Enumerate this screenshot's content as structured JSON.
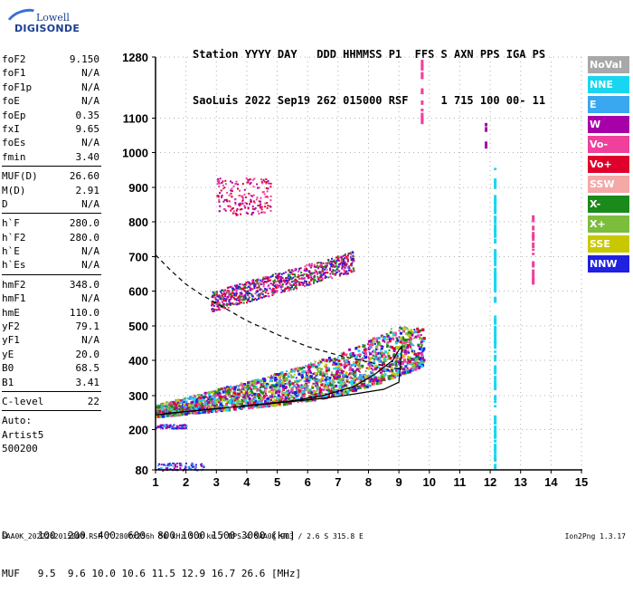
{
  "logo": {
    "line1": "Lowell",
    "line2": "DIGISONDE"
  },
  "header": {
    "line1": "Station YYYY DAY   DDD HHMMSS P1  FFS S AXN PPS IGA PS",
    "line2": "SaoLuis 2022 Sep19 262 015000 RSF     1 715 100 00- 11"
  },
  "params": {
    "group1": [
      {
        "label": "foF2",
        "value": "9.150"
      },
      {
        "label": "foF1",
        "value": "N/A"
      },
      {
        "label": "foF1p",
        "value": "N/A"
      },
      {
        "label": "foE",
        "value": "N/A"
      },
      {
        "label": "foEp",
        "value": "0.35"
      },
      {
        "label": "fxI",
        "value": "9.65"
      },
      {
        "label": "foEs",
        "value": "N/A"
      },
      {
        "label": "fmin",
        "value": "3.40"
      }
    ],
    "group2": [
      {
        "label": "MUF(D)",
        "value": "26.60"
      },
      {
        "label": "M(D)",
        "value": "2.91"
      },
      {
        "label": "D",
        "value": "N/A"
      }
    ],
    "group3": [
      {
        "label": "h`F",
        "value": "280.0"
      },
      {
        "label": "h`F2",
        "value": "280.0"
      },
      {
        "label": "h`E",
        "value": "N/A"
      },
      {
        "label": "h`Es",
        "value": "N/A"
      }
    ],
    "group4": [
      {
        "label": "hmF2",
        "value": "348.0"
      },
      {
        "label": "hmF1",
        "value": "N/A"
      },
      {
        "label": "hmE",
        "value": "110.0"
      },
      {
        "label": "yF2",
        "value": "79.1"
      },
      {
        "label": "yF1",
        "value": "N/A"
      },
      {
        "label": "yE",
        "value": "20.0"
      },
      {
        "label": "B0",
        "value": "68.5"
      },
      {
        "label": "B1",
        "value": "3.41"
      }
    ],
    "group5": [
      {
        "label": "C-level",
        "value": "22"
      }
    ],
    "auto": [
      "Auto:",
      "Artist5",
      "500200"
    ]
  },
  "legend": [
    {
      "label": "NoVal",
      "color": "#a8a8a8"
    },
    {
      "label": "NNE",
      "color": "#19d6f0"
    },
    {
      "label": "E",
      "color": "#3aa8f0"
    },
    {
      "label": "W",
      "color": "#a800a8"
    },
    {
      "label": "Vo-",
      "color": "#f0409c"
    },
    {
      "label": "Vo+",
      "color": "#e0002c"
    },
    {
      "label": "SSW",
      "color": "#f4a8a8"
    },
    {
      "label": "X-",
      "color": "#1a8a1a"
    },
    {
      "label": "X+",
      "color": "#7cbd3c"
    },
    {
      "label": "SSE",
      "color": "#c8c800"
    },
    {
      "label": "NNW",
      "color": "#2020e0"
    }
  ],
  "bottom": {
    "line1": "D     100  200  400  600  800 1000 1500 3000 [km]",
    "line2": "MUF   9.5  9.6 10.0 10.6 11.5 12.9 16.7 26.6 [MHz]"
  },
  "footer": "SAA0K_2022262015000.RSF / 280fx256h 50 kHz 5.0 km / DPS-4 SAA0K 903 / 2.6 S 315.8 E",
  "version": "Ion2Png 1.3.17",
  "chart_data": {
    "type": "scatter",
    "x_ticks": [
      "1",
      "2",
      "3",
      "4",
      "5",
      "6",
      "7",
      "8",
      "9",
      "10",
      "11",
      "12",
      "13",
      "14",
      "15"
    ],
    "y_ticks": [
      "80",
      "200",
      "300",
      "400",
      "500",
      "600",
      "700",
      "800",
      "900",
      "1000",
      "1100",
      "1280"
    ],
    "xlim": [
      1,
      15
    ],
    "ylim": [
      80,
      1280
    ],
    "y_scale": "nonlinear",
    "grid": true,
    "legend_position": "right",
    "x_tick_values": [
      1,
      2,
      3,
      4,
      5,
      6,
      7,
      8,
      9,
      10,
      11,
      12,
      13,
      14,
      15
    ],
    "y_tick_values": [
      80,
      200,
      300,
      400,
      500,
      600,
      700,
      800,
      900,
      1000,
      1100,
      1280
    ],
    "clusters": [
      {
        "name": "F trace",
        "x": [
          1.0,
          9.8
        ],
        "y": [
          240,
          500
        ],
        "colors": [
          "W",
          "Vo+",
          "Vo-",
          "NNW",
          "X-",
          "X+",
          "E",
          "NNE",
          "SSE"
        ]
      },
      {
        "name": "F echo 2",
        "x": [
          2.8,
          7.5
        ],
        "y": [
          530,
          720
        ],
        "colors": [
          "W",
          "Vo+",
          "Vo-",
          "NNW",
          "X-"
        ]
      },
      {
        "name": "F echo 3",
        "x": [
          3.0,
          4.8
        ],
        "y": [
          820,
          930
        ],
        "colors": [
          "W",
          "Vo+",
          "Vo-"
        ]
      },
      {
        "name": "low",
        "x": [
          1.0,
          2.5
        ],
        "y": [
          80,
          215
        ],
        "colors": [
          "NNW",
          "W",
          "E"
        ]
      }
    ],
    "lines": [
      {
        "name": "profile",
        "x": [
          1.0,
          1.5,
          2.5,
          3.5,
          4.5,
          5.5,
          6.5,
          7.5,
          8.2,
          8.8,
          9.0,
          9.1,
          9.0,
          8.5,
          7.5,
          6.5,
          5.5,
          4.5,
          3.5,
          2.5,
          1.5,
          1.0
        ],
        "y": [
          243,
          248,
          258,
          266,
          275,
          285,
          300,
          325,
          360,
          400,
          430,
          440,
          338,
          318,
          304,
          292,
          283,
          274,
          266,
          257,
          249,
          243
        ],
        "style": "solid"
      },
      {
        "name": "muf-curve",
        "x": [
          1.0,
          1.5,
          2.0,
          2.5,
          3.0,
          4.0,
          5.0,
          6.0,
          7.0,
          8.0,
          9.0
        ],
        "y": [
          705,
          660,
          620,
          590,
          565,
          515,
          475,
          440,
          415,
          395,
          375
        ],
        "style": "dashed"
      }
    ],
    "vertical_markers": [
      {
        "x": 9.75,
        "y": [
          1080,
          1280
        ],
        "color": "Vo-"
      },
      {
        "x": 11.85,
        "y": [
          1020,
          1090
        ],
        "color": "W"
      },
      {
        "x": 12.15,
        "y": [
          80,
          960
        ],
        "color": "NNE"
      },
      {
        "x": 13.4,
        "y": [
          615,
          830
        ],
        "color": "Vo-"
      }
    ]
  }
}
